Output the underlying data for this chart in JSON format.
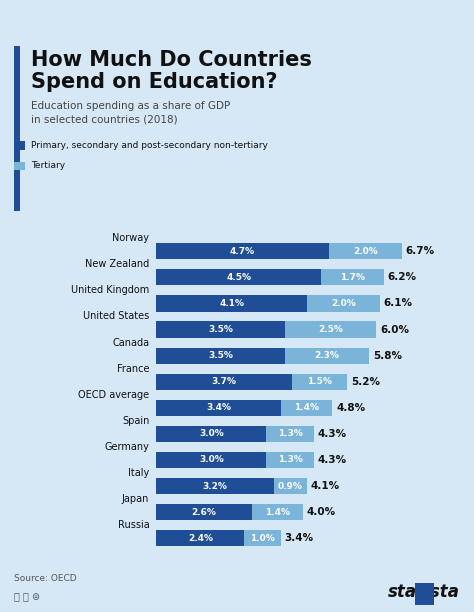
{
  "title_line1": "How Much Do Countries",
  "title_line2": "Spend on Education?",
  "subtitle": "Education spending as a share of GDP\nin selected countries (2018)",
  "countries": [
    "Norway",
    "New Zealand",
    "United Kingdom",
    "United States",
    "Canada",
    "France",
    "OECD average",
    "Spain",
    "Germany",
    "Italy",
    "Japan",
    "Russia"
  ],
  "primary": [
    4.7,
    4.5,
    4.1,
    3.5,
    3.5,
    3.7,
    3.4,
    3.0,
    3.0,
    3.2,
    2.6,
    2.4
  ],
  "tertiary": [
    2.0,
    1.7,
    2.0,
    2.5,
    2.3,
    1.5,
    1.4,
    1.3,
    1.3,
    0.9,
    1.4,
    1.0
  ],
  "totals": [
    6.7,
    6.2,
    6.1,
    6.0,
    5.8,
    5.2,
    4.8,
    4.3,
    4.3,
    4.1,
    4.0,
    3.4
  ],
  "primary_color": "#1f4e96",
  "tertiary_color": "#7ab4d8",
  "bg_color": "#d6e8f5",
  "accent_color": "#1f4e96",
  "title_color": "#111111",
  "bar_text_color": "#ffffff",
  "total_text_color": "#111111",
  "legend_primary": "Primary, secondary and post-secondary non-tertiary",
  "legend_tertiary": "Tertiary",
  "source_text": "Source: OECD",
  "bar_height": 0.62,
  "xlim_max": 7.5
}
